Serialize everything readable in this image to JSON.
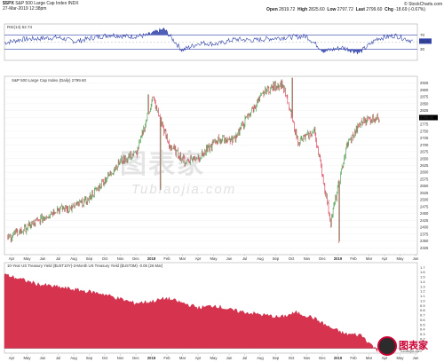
{
  "header": {
    "symbol": "$SPX",
    "name": "S&P 500 Large Cap Index INDX",
    "date": "27-Mar-2019 12:38pm",
    "open_label": "Open",
    "open": "2819.72",
    "high_label": "High",
    "high": "2825.60",
    "low_label": "Low",
    "low": "2797.72",
    "last_label": "Last",
    "last": "2799.60",
    "chg_label": "Chg",
    "chg": "-18.69 (-0.67%)",
    "brand": "© StockCharts.com"
  },
  "watermark": {
    "main": "图表家",
    "sub": "Tubiaojia.com"
  },
  "logo": {
    "text": "图表家",
    "sub": "Tubiaojia.com"
  },
  "colors": {
    "up": "#2e8b2e",
    "down": "#d81b3a",
    "rsi": "#3344aa",
    "spread_fill": "#d6334f"
  },
  "chart_data": [
    {
      "type": "line",
      "legend": "RSI(14) 52.74",
      "ylim": [
        0,
        100
      ],
      "yticks": [
        30,
        50,
        70
      ],
      "overbought": 70,
      "oversold": 30,
      "current": 52.74,
      "x": [
        "2017-04",
        "2017-05",
        "2017-06",
        "2017-07",
        "2017-08",
        "2017-09",
        "2017-10",
        "2017-11",
        "2017-12",
        "2018-01",
        "2018-02",
        "2018-03",
        "2018-04",
        "2018-05",
        "2018-06",
        "2018-07",
        "2018-08",
        "2018-09",
        "2018-10",
        "2018-11",
        "2018-12",
        "2019-01",
        "2019-02",
        "2019-03"
      ],
      "values": [
        48,
        58,
        60,
        63,
        52,
        62,
        70,
        65,
        68,
        85,
        28,
        48,
        45,
        58,
        55,
        60,
        64,
        66,
        25,
        35,
        22,
        60,
        68,
        52.74
      ]
    },
    {
      "type": "bar",
      "legend": "S&P 500 Large Cap Index (Daily) 2799.60",
      "ylim": [
        2300,
        2950
      ],
      "yticks": [
        2325,
        2350,
        2375,
        2400,
        2425,
        2450,
        2475,
        2500,
        2525,
        2550,
        2575,
        2600,
        2625,
        2650,
        2675,
        2700,
        2725,
        2750,
        2775,
        2800,
        2825,
        2850,
        2875,
        2900,
        2925
      ],
      "highlight_tick": "2799.60",
      "x_labels": [
        "Apr",
        "May",
        "Jun",
        "Jul",
        "Aug",
        "Sep",
        "Oct",
        "Nov",
        "Dec",
        "2018",
        "Feb",
        "Mar",
        "Apr",
        "May",
        "Jun",
        "Jul",
        "Aug",
        "Sep",
        "Oct",
        "Nov",
        "Dec",
        "2019",
        "Feb",
        "Mar",
        "Apr",
        "May",
        "Jun"
      ],
      "dates": [
        "2017-04",
        "2017-05",
        "2017-06",
        "2017-07",
        "2017-08",
        "2017-09",
        "2017-10",
        "2017-11",
        "2017-12",
        "2018-01",
        "2018-02",
        "2018-03",
        "2018-04",
        "2018-05",
        "2018-06",
        "2018-07",
        "2018-08",
        "2018-09",
        "2018-10",
        "2018-11",
        "2018-12",
        "2019-01",
        "2019-02",
        "2019-03"
      ],
      "close": [
        2360,
        2390,
        2425,
        2465,
        2470,
        2500,
        2570,
        2640,
        2670,
        2870,
        2700,
        2640,
        2660,
        2720,
        2720,
        2815,
        2900,
        2925,
        2710,
        2750,
        2420,
        2700,
        2790,
        2800
      ]
    },
    {
      "type": "area",
      "legend": "10-Year US Treasury Yield ($UST10Y)-3-Month US Treasury Yield ($UST3M) -0.05 (26 Mar)",
      "ylim": [
        -0.1,
        1.8
      ],
      "yticks": [
        0.0,
        0.1,
        0.2,
        0.3,
        0.4,
        0.5,
        0.6,
        0.7,
        0.8,
        0.9,
        1.0,
        1.1,
        1.2,
        1.3,
        1.4,
        1.5,
        1.6,
        1.7
      ],
      "x_labels": [
        "Apr",
        "May",
        "Jun",
        "Jul",
        "Aug",
        "Sep",
        "Oct",
        "Nov",
        "Dec",
        "2018",
        "Feb",
        "Mar",
        "Apr",
        "May",
        "Jun",
        "Jul",
        "Aug",
        "Sep",
        "Oct",
        "Nov",
        "Dec",
        "2019",
        "Feb",
        "Mar",
        "Apr",
        "May",
        "Jun"
      ],
      "dates": [
        "2017-04",
        "2017-05",
        "2017-06",
        "2017-07",
        "2017-08",
        "2017-09",
        "2017-10",
        "2017-11",
        "2017-12",
        "2018-01",
        "2018-02",
        "2018-03",
        "2018-04",
        "2018-05",
        "2018-06",
        "2018-07",
        "2018-08",
        "2018-09",
        "2018-10",
        "2018-11",
        "2018-12",
        "2019-01",
        "2019-02",
        "2019-03"
      ],
      "values": [
        1.55,
        1.45,
        1.35,
        1.3,
        1.25,
        1.2,
        1.15,
        1.05,
        0.95,
        0.98,
        1.05,
        0.95,
        0.85,
        0.9,
        0.8,
        0.75,
        0.7,
        0.65,
        0.75,
        0.65,
        0.45,
        0.3,
        0.28,
        -0.05
      ]
    }
  ]
}
